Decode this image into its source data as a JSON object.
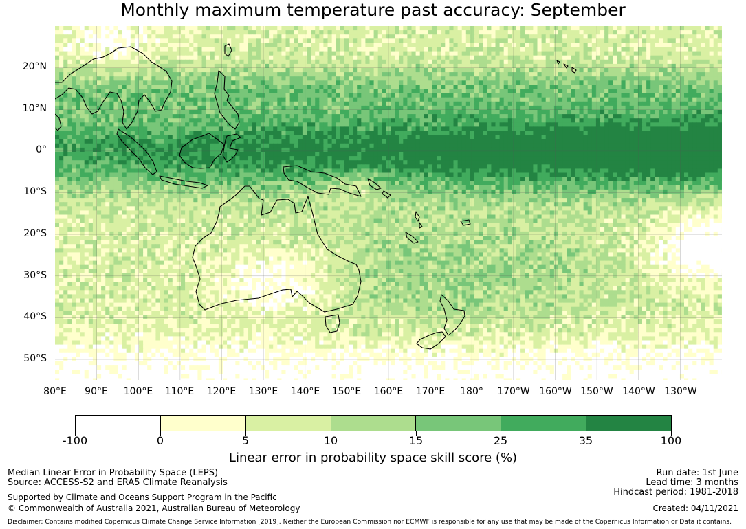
{
  "title": "Monthly maximum temperature past accuracy: September",
  "map": {
    "lat_labels": [
      "20°N",
      "10°N",
      "0°",
      "10°S",
      "20°S",
      "30°S",
      "40°S",
      "50°S"
    ],
    "lon_labels": [
      "80°E",
      "90°E",
      "100°E",
      "110°E",
      "120°E",
      "130°E",
      "140°E",
      "150°E",
      "160°E",
      "170°E",
      "180°",
      "170°W",
      "160°W",
      "150°W",
      "140°W",
      "130°W"
    ],
    "colors": {
      "-100_0": "#ffffff",
      "0_5": "#ffffcc",
      "5_10": "#d9f0a3",
      "10_15": "#addd8e",
      "15_25": "#78c679",
      "25_35": "#41ab5d",
      "35_100": "#238443",
      "coastline": "#000000",
      "gridline": "#555555"
    }
  },
  "colorbar": {
    "title": "Linear error in probability space skill score (%)",
    "ticks": [
      "-100",
      "0",
      "5",
      "10",
      "15",
      "25",
      "35",
      "100"
    ]
  },
  "footer": {
    "line1": "Median Linear Error in Probability Space (LEPS)",
    "line2": "Source: ACCESS-S2 and ERA5 Climate Reanalysis",
    "line3": "Supported by Climate and Oceans Support Program in the Pacific",
    "line4": "© Commonwealth of Australia 2021, Australian Bureau of Meteorology",
    "run_date": "Run date: 1st June",
    "lead_time": "Lead time: 3 months",
    "hindcast": "Hindcast period: 1981-2018",
    "created": "Created: 04/11/2021",
    "disclaimer": "Disclaimer: Contains modified Copernicus Climate Change Service Information [2019]. Neither the European Commission nor ECMWF is responsible for any use that may be made of the Copernicus Information or Data it contains."
  }
}
